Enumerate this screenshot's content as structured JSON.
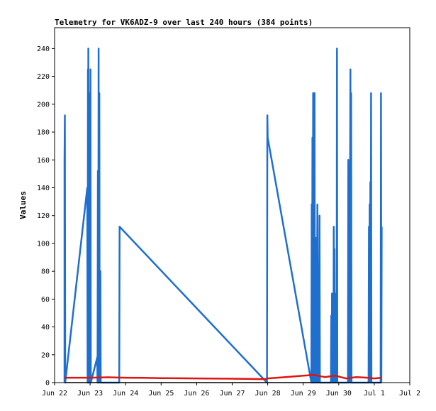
{
  "chart_data": {
    "type": "line",
    "title": "Telemetry for VK6ADZ-9 over last 240 hours (384 points)",
    "xlabel": "",
    "ylabel": "Values",
    "xlim": [
      0,
      10
    ],
    "ylim": [
      0,
      255
    ],
    "x_ticks": [
      {
        "x": 0,
        "label": "Jun 22"
      },
      {
        "x": 1,
        "label": "Jun 23"
      },
      {
        "x": 2,
        "label": "Jun 24"
      },
      {
        "x": 3,
        "label": "Jun 25"
      },
      {
        "x": 4,
        "label": "Jun 26"
      },
      {
        "x": 5,
        "label": "Jun 27"
      },
      {
        "x": 6,
        "label": "Jun 28"
      },
      {
        "x": 7,
        "label": "Jun 29"
      },
      {
        "x": 8,
        "label": "Jun 30"
      },
      {
        "x": 9,
        "label": "Jul 1"
      },
      {
        "x": 10,
        "label": "Jul 2"
      }
    ],
    "y_ticks": [
      0,
      20,
      40,
      60,
      80,
      100,
      120,
      140,
      160,
      180,
      200,
      220,
      240
    ],
    "grid": false,
    "series": [
      {
        "color": "#1f6fcf",
        "points": [
          [
            0.28,
            0
          ],
          [
            0.28,
            160
          ],
          [
            0.29,
            192
          ],
          [
            0.3,
            0
          ],
          [
            0.92,
            140
          ],
          [
            0.93,
            0
          ],
          [
            0.94,
            225
          ],
          [
            0.945,
            0
          ],
          [
            0.95,
            240
          ],
          [
            0.96,
            0
          ],
          [
            0.97,
            208
          ],
          [
            0.98,
            0
          ],
          [
            0.99,
            128
          ],
          [
            1.0,
            0
          ],
          [
            1.01,
            225
          ],
          [
            1.02,
            0
          ],
          [
            1.2,
            18
          ],
          [
            1.21,
            0
          ],
          [
            1.22,
            152
          ],
          [
            1.23,
            0
          ],
          [
            1.24,
            240
          ],
          [
            1.25,
            0
          ],
          [
            1.26,
            208
          ],
          [
            1.27,
            0
          ],
          [
            1.29,
            80
          ],
          [
            1.3,
            0
          ],
          [
            1.82,
            0
          ],
          [
            1.83,
            112
          ],
          [
            5.98,
            0
          ],
          [
            5.99,
            192
          ],
          [
            6.0,
            176
          ],
          [
            7.23,
            0
          ],
          [
            7.24,
            128
          ],
          [
            7.25,
            0
          ],
          [
            7.26,
            176
          ],
          [
            7.27,
            0
          ],
          [
            7.28,
            208
          ],
          [
            7.29,
            0
          ],
          [
            7.3,
            112
          ],
          [
            7.31,
            0
          ],
          [
            7.32,
            208
          ],
          [
            7.33,
            0
          ],
          [
            7.35,
            64
          ],
          [
            7.36,
            0
          ],
          [
            7.37,
            104
          ],
          [
            7.38,
            0
          ],
          [
            7.4,
            128
          ],
          [
            7.41,
            0
          ],
          [
            7.43,
            56
          ],
          [
            7.44,
            0
          ],
          [
            7.46,
            120
          ],
          [
            7.47,
            0
          ],
          [
            7.78,
            0
          ],
          [
            7.79,
            48
          ],
          [
            7.8,
            0
          ],
          [
            7.81,
            64
          ],
          [
            7.82,
            0
          ],
          [
            7.84,
            32
          ],
          [
            7.85,
            0
          ],
          [
            7.86,
            112
          ],
          [
            7.87,
            0
          ],
          [
            7.88,
            96
          ],
          [
            7.89,
            0
          ],
          [
            7.9,
            64
          ],
          [
            7.91,
            0
          ],
          [
            7.93,
            40
          ],
          [
            7.94,
            0
          ],
          [
            7.95,
            240
          ],
          [
            7.96,
            0
          ],
          [
            8.26,
            0
          ],
          [
            8.27,
            160
          ],
          [
            8.28,
            0
          ],
          [
            8.29,
            128
          ],
          [
            8.3,
            0
          ],
          [
            8.33,
            225
          ],
          [
            8.34,
            0
          ],
          [
            8.35,
            208
          ],
          [
            8.36,
            0
          ],
          [
            8.84,
            0
          ],
          [
            8.85,
            112
          ],
          [
            8.86,
            0
          ],
          [
            8.87,
            128
          ],
          [
            8.88,
            0
          ],
          [
            8.89,
            144
          ],
          [
            8.9,
            0
          ],
          [
            8.91,
            208
          ],
          [
            8.92,
            0
          ],
          [
            9.18,
            0
          ],
          [
            9.19,
            208
          ],
          [
            9.2,
            0
          ],
          [
            9.21,
            112
          ]
        ]
      },
      {
        "color": "#e0140f",
        "points": [
          [
            0.28,
            3.5
          ],
          [
            1.0,
            3.5
          ],
          [
            1.5,
            3.8
          ],
          [
            2.0,
            3.5
          ],
          [
            2.5,
            3.4
          ],
          [
            3.0,
            3.2
          ],
          [
            4.0,
            3.0
          ],
          [
            5.0,
            2.8
          ],
          [
            5.9,
            2.5
          ],
          [
            6.0,
            3.0
          ],
          [
            6.5,
            4.0
          ],
          [
            7.0,
            5.0
          ],
          [
            7.3,
            5.5
          ],
          [
            7.6,
            4.0
          ],
          [
            7.9,
            5.0
          ],
          [
            8.2,
            3.0
          ],
          [
            8.5,
            4.0
          ],
          [
            8.8,
            3.5
          ],
          [
            9.0,
            3.0
          ],
          [
            9.21,
            3.5
          ]
        ]
      },
      {
        "color": "#000000",
        "points": [
          [
            0.28,
            0
          ],
          [
            9.21,
            0
          ]
        ]
      }
    ]
  }
}
